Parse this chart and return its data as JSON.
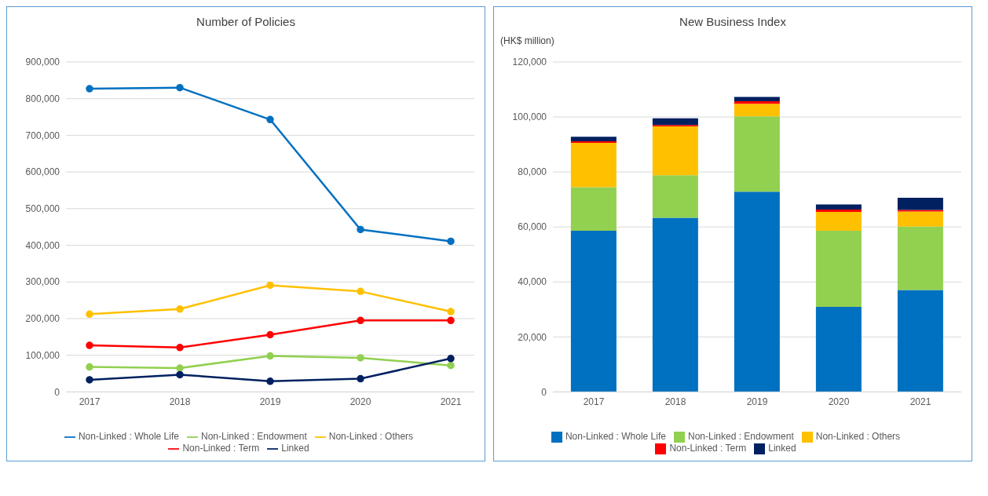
{
  "chart_data": [
    {
      "type": "line",
      "title": "Number of Policies",
      "categories": [
        "2017",
        "2018",
        "2019",
        "2020",
        "2021"
      ],
      "series": [
        {
          "name": "Non-Linked : Whole Life",
          "color": "#0070c0",
          "values": [
            827000,
            830000,
            743000,
            443000,
            411000
          ]
        },
        {
          "name": "Non-Linked : Endowment",
          "color": "#92d050",
          "values": [
            68000,
            65000,
            98000,
            93000,
            72000
          ]
        },
        {
          "name": "Non-Linked : Others",
          "color": "#ffc000",
          "values": [
            212000,
            226000,
            291000,
            274000,
            219000
          ]
        },
        {
          "name": "Non-Linked : Term",
          "color": "#ff0000",
          "values": [
            127000,
            121000,
            156000,
            195000,
            195000
          ]
        },
        {
          "name": "Linked",
          "color": "#002060",
          "values": [
            33000,
            47000,
            29000,
            36000,
            91000
          ]
        }
      ],
      "ylim": [
        0,
        900000
      ],
      "yticks": [
        0,
        {
          "value": 100000,
          "label": "100,000"
        },
        {
          "value": 200000,
          "label": "200,000"
        },
        {
          "value": 300000,
          "label": "300,000"
        },
        {
          "value": 400000,
          "label": "400,000"
        },
        {
          "value": 500000,
          "label": "500,000"
        },
        {
          "value": 600000,
          "label": "600,000"
        },
        {
          "value": 700000,
          "label": "700,000"
        },
        {
          "value": 800000,
          "label": "800,000"
        },
        {
          "value": 900000,
          "label": "900,000"
        }
      ],
      "grid": "y",
      "legend": "bottom",
      "marker": "circle",
      "line_style": "solid"
    },
    {
      "type": "bar",
      "title": "New Business Index",
      "ylabel": "(HK$ million)",
      "stacked": true,
      "categories": [
        "2017",
        "2018",
        "2019",
        "2020",
        "2021"
      ],
      "series": [
        {
          "name": "Non-Linked : Whole Life",
          "color": "#0070c0",
          "values": [
            58600,
            63300,
            72800,
            30900,
            37100
          ]
        },
        {
          "name": "Non-Linked : Endowment",
          "color": "#92d050",
          "values": [
            15900,
            15500,
            27400,
            27700,
            23000
          ]
        },
        {
          "name": "Non-Linked : Others",
          "color": "#ffc000",
          "values": [
            16100,
            17800,
            4600,
            6900,
            5500
          ]
        },
        {
          "name": "Non-Linked : Term",
          "color": "#ff0000",
          "values": [
            600,
            500,
            900,
            800,
            600
          ]
        },
        {
          "name": "Linked",
          "color": "#002060",
          "values": [
            1600,
            2400,
            1600,
            1900,
            4400
          ]
        }
      ],
      "ylim": [
        0,
        120000
      ],
      "yticks": [
        0,
        {
          "value": 20000,
          "label": "20,000"
        },
        {
          "value": 40000,
          "label": "40,000"
        },
        {
          "value": 60000,
          "label": "60,000"
        },
        {
          "value": 80000,
          "label": "80,000"
        },
        {
          "value": 100000,
          "label": "100,000"
        },
        {
          "value": 120000,
          "label": "120,000"
        }
      ],
      "grid": "y",
      "legend": "bottom"
    }
  ]
}
